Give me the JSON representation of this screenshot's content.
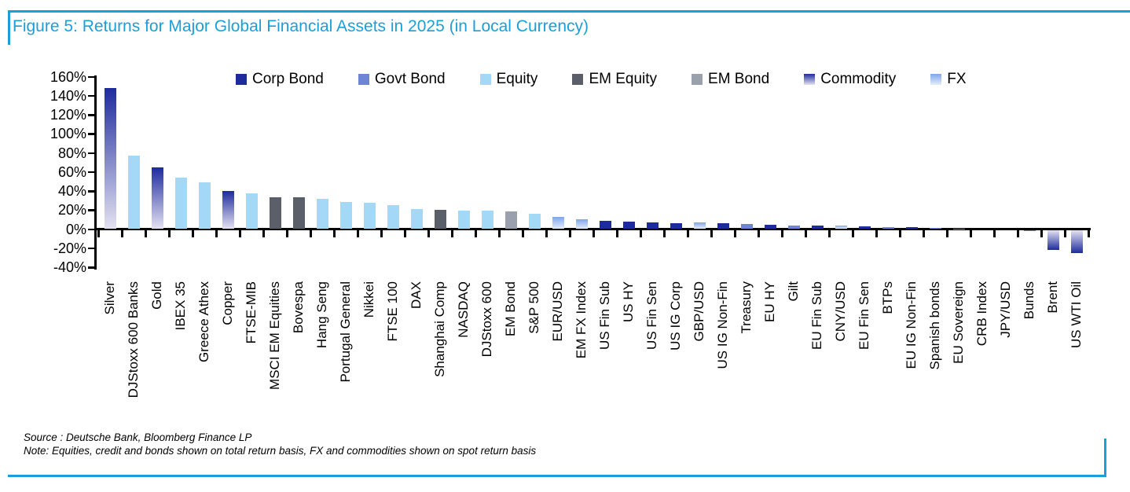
{
  "figure": {
    "title": "Figure 5: Returns for Major Global Financial Assets in 2025 (in Local Currency)",
    "source": "Source : Deutsche Bank, Bloomberg Finance LP",
    "note": "Note: Equities, credit and bonds shown on total return basis, FX and commodities shown on spot return basis",
    "accent_color": "#1b9fda"
  },
  "legend": [
    {
      "label": "Corp Bond"
    },
    {
      "label": "Govt Bond"
    },
    {
      "label": "Equity"
    },
    {
      "label": "EM Equity"
    },
    {
      "label": "EM Bond"
    },
    {
      "label": "Commodity"
    },
    {
      "label": "FX"
    }
  ],
  "chart_data": {
    "type": "bar",
    "title": "Returns for Major Global Financial Assets in 2025 (in Local Currency)",
    "xlabel": "",
    "ylabel": "",
    "ylim": [
      -40,
      160
    ],
    "ytick_step": 20,
    "ytick_suffix": "%",
    "grid": false,
    "legend_position": "top",
    "value_unit": "percent_return",
    "categories": [
      "Silver",
      "DJStoxx 600 Banks",
      "Gold",
      "IBEX 35",
      "Greece Athex",
      "Copper",
      "FTSE-MIB",
      "MSCI EM Equities",
      "Bovespa",
      "Hang Seng",
      "Portugal General",
      "Nikkei",
      "FTSE 100",
      "DAX",
      "Shanghai Comp",
      "NASDAQ",
      "DJStoxx 600",
      "EM Bond",
      "S&P 500",
      "EUR/USD",
      "EM FX Index",
      "US Fin Sub",
      "US HY",
      "US Fin Sen",
      "US IG Corp",
      "GBP/USD",
      "US IG Non-Fin",
      "Treasury",
      "EU HY",
      "Gilt",
      "EU Fin Sub",
      "CNY/USD",
      "EU Fin Sen",
      "BTPs",
      "EU IG Non-Fin",
      "Spanish bonds",
      "EU Sovereign",
      "CRB Index",
      "JPY/USD",
      "Bunds",
      "Brent",
      "US WTI Oil"
    ],
    "values": [
      148,
      77,
      64,
      54,
      49,
      40,
      37,
      33,
      33,
      31,
      28,
      27,
      25,
      21,
      20,
      19,
      19,
      18,
      16,
      12,
      10,
      8,
      7.5,
      6.2,
      6,
      6.3,
      5.5,
      4.6,
      4,
      3.7,
      3.2,
      3,
      2.2,
      2,
      1.8,
      1,
      0.4,
      0.3,
      0.2,
      -1,
      -21,
      -24
    ],
    "asset_classes": [
      "Commodity",
      "Equity",
      "Commodity",
      "Equity",
      "Equity",
      "Commodity",
      "Equity",
      "EM Equity",
      "EM Equity",
      "Equity",
      "Equity",
      "Equity",
      "Equity",
      "Equity",
      "EM Equity",
      "Equity",
      "Equity",
      "EM Bond",
      "Equity",
      "FX",
      "FX",
      "Corp Bond",
      "Corp Bond",
      "Corp Bond",
      "Corp Bond",
      "FX",
      "Corp Bond",
      "Govt Bond",
      "Corp Bond",
      "Govt Bond",
      "Corp Bond",
      "FX",
      "Corp Bond",
      "Govt Bond",
      "Corp Bond",
      "Govt Bond",
      "Govt Bond",
      "Commodity",
      "FX",
      "Govt Bond",
      "Commodity",
      "Commodity"
    ],
    "class_colors": {
      "Corp Bond": {
        "style": "solid",
        "color": "#1e2b9d"
      },
      "Govt Bond": {
        "style": "solid",
        "color": "#6e84d5"
      },
      "Equity": {
        "style": "solid",
        "color": "#a3d9f6"
      },
      "EM Equity": {
        "style": "solid",
        "color": "#5a5f69"
      },
      "EM Bond": {
        "style": "solid",
        "color": "#9aa1ad"
      },
      "Commodity": {
        "style": "gradient",
        "from": "#1e2b9d",
        "to": "#e4e2f1"
      },
      "FX": {
        "style": "gradient",
        "from": "#7ea6e8",
        "to": "#e4edfb"
      }
    }
  }
}
